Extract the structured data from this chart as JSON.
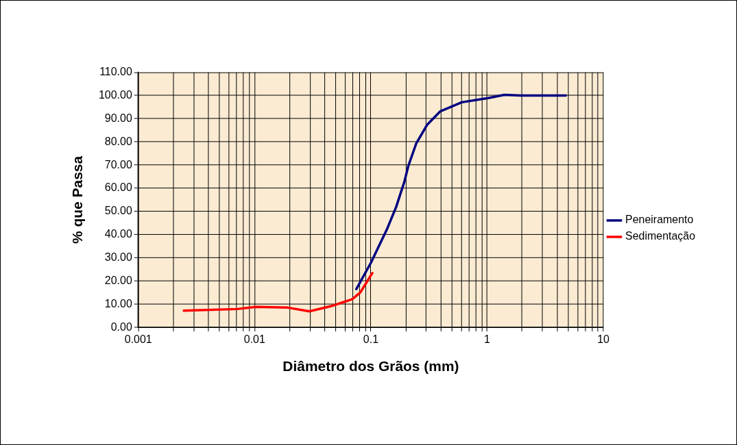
{
  "chart_data": {
    "type": "line",
    "xlabel": "Diâmetro dos Grãos (mm)",
    "ylabel": "% que Passa",
    "log": "x",
    "grid": true,
    "legend": "right",
    "marker": "none",
    "line_style": "solid",
    "xlim": [
      0.001,
      10
    ],
    "ylim": [
      0,
      110
    ],
    "xticks": [
      {
        "value": 0.001,
        "label": "0.001"
      },
      {
        "value": 0.002,
        "label": null
      },
      {
        "value": 0.003,
        "label": null
      },
      {
        "value": 0.004,
        "label": null
      },
      {
        "value": 0.005,
        "label": null
      },
      {
        "value": 0.006,
        "label": null
      },
      {
        "value": 0.007,
        "label": null
      },
      {
        "value": 0.008,
        "label": null
      },
      {
        "value": 0.009,
        "label": null
      },
      {
        "value": 0.01,
        "label": "0.01"
      },
      {
        "value": 0.02,
        "label": null
      },
      {
        "value": 0.03,
        "label": null
      },
      {
        "value": 0.04,
        "label": null
      },
      {
        "value": 0.05,
        "label": null
      },
      {
        "value": 0.06,
        "label": null
      },
      {
        "value": 0.07,
        "label": null
      },
      {
        "value": 0.08,
        "label": null
      },
      {
        "value": 0.09,
        "label": null
      },
      {
        "value": 0.1,
        "label": "0.1"
      },
      {
        "value": 0.2,
        "label": null
      },
      {
        "value": 0.3,
        "label": null
      },
      {
        "value": 0.4,
        "label": null
      },
      {
        "value": 0.5,
        "label": null
      },
      {
        "value": 0.6,
        "label": null
      },
      {
        "value": 0.7,
        "label": null
      },
      {
        "value": 0.8,
        "label": null
      },
      {
        "value": 0.9,
        "label": null
      },
      {
        "value": 1,
        "label": "1"
      },
      {
        "value": 2,
        "label": null
      },
      {
        "value": 3,
        "label": null
      },
      {
        "value": 4,
        "label": null
      },
      {
        "value": 5,
        "label": null
      },
      {
        "value": 6,
        "label": null
      },
      {
        "value": 7,
        "label": null
      },
      {
        "value": 8,
        "label": null
      },
      {
        "value": 9,
        "label": null
      },
      {
        "value": 10,
        "label": "10"
      }
    ],
    "yticks": [
      {
        "value": 0,
        "label": "0.00"
      },
      {
        "value": 10,
        "label": "10.00"
      },
      {
        "value": 20,
        "label": "20.00"
      },
      {
        "value": 30,
        "label": "30.00"
      },
      {
        "value": 40,
        "label": "40.00"
      },
      {
        "value": 50,
        "label": "50.00"
      },
      {
        "value": 60,
        "label": "60.00"
      },
      {
        "value": 70,
        "label": "70.00"
      },
      {
        "value": 80,
        "label": "80.00"
      },
      {
        "value": 90,
        "label": "90.00"
      },
      {
        "value": 100,
        "label": "100.00"
      },
      {
        "value": 110,
        "label": "110.00"
      }
    ],
    "series": [
      {
        "name": "Peneiramento",
        "color": "#000080",
        "x": [
          0.075,
          0.1,
          0.137,
          0.165,
          0.194,
          0.21,
          0.246,
          0.304,
          0.396,
          0.606,
          1.02,
          1.41,
          1.94,
          4.76
        ],
        "values": [
          16.5,
          27.8,
          42.1,
          51.9,
          62.7,
          69.6,
          79.4,
          87.3,
          93.2,
          97.1,
          98.9,
          100.3,
          100,
          100
        ]
      },
      {
        "name": "Sedimentação",
        "color": "#ff0000",
        "x": [
          0.00246,
          0.0071,
          0.0103,
          0.0194,
          0.0296,
          0.0452,
          0.069,
          0.081,
          0.103
        ],
        "values": [
          7.2,
          7.9,
          8.8,
          8.5,
          6.9,
          9.1,
          12.1,
          15,
          23.4
        ]
      }
    ]
  }
}
